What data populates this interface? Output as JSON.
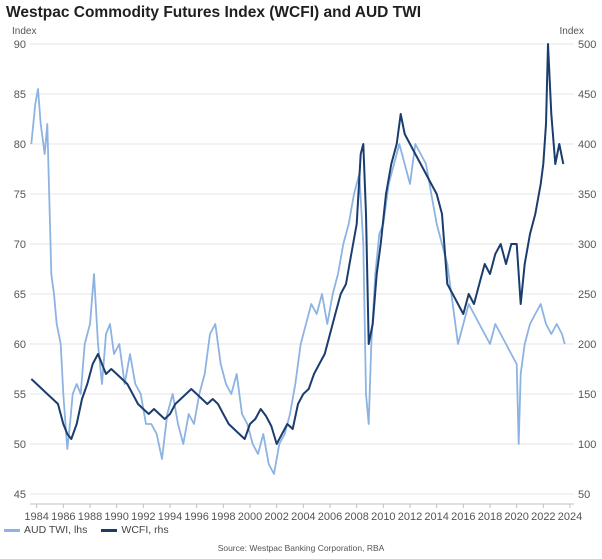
{
  "title": "Westpac Commodity Futures Index (WCFI) and AUD TWI",
  "source": "Source: Westpac Banking Corporation, RBA",
  "chart_data": {
    "type": "line",
    "title": "Westpac Commodity Futures Index (WCFI) and AUD TWI",
    "left_axis": {
      "unit": "Index",
      "ylim": [
        45,
        90
      ],
      "ticks": [
        "45",
        "50",
        "55",
        "60",
        "65",
        "70",
        "75",
        "80",
        "85",
        "90"
      ]
    },
    "right_axis": {
      "unit": "Index",
      "ylim": [
        50,
        500
      ],
      "ticks": [
        "50",
        "100",
        "150",
        "200",
        "250",
        "300",
        "350",
        "400",
        "450",
        "500"
      ]
    },
    "x_ticks": [
      "1984",
      "1986",
      "1988",
      "1990",
      "1992",
      "1994",
      "1996",
      "1998",
      "2000",
      "2002",
      "2004",
      "2006",
      "2008",
      "2010",
      "2012",
      "2014",
      "2016",
      "2018",
      "2020",
      "2022",
      "2024"
    ],
    "xlim": [
      1983.5,
      2024.3
    ],
    "grid": true,
    "legend": "bottom-left",
    "series": [
      {
        "name": "AUD TWI, lhs",
        "axis": "left",
        "color": "#8db3e2",
        "x": [
          1983.6,
          1983.9,
          1984.1,
          1984.3,
          1984.6,
          1984.8,
          1985.0,
          1985.1,
          1985.3,
          1985.5,
          1985.8,
          1986.0,
          1986.3,
          1986.5,
          1986.7,
          1987.0,
          1987.3,
          1987.6,
          1988.0,
          1988.3,
          1988.6,
          1988.9,
          1989.2,
          1989.5,
          1989.8,
          1990.2,
          1990.6,
          1991.0,
          1991.4,
          1991.8,
          1992.2,
          1992.6,
          1993.0,
          1993.4,
          1993.8,
          1994.2,
          1994.6,
          1995.0,
          1995.4,
          1995.8,
          1996.2,
          1996.6,
          1997.0,
          1997.4,
          1997.8,
          1998.2,
          1998.6,
          1999.0,
          1999.4,
          1999.8,
          2000.2,
          2000.6,
          2001.0,
          2001.4,
          2001.8,
          2002.2,
          2002.6,
          2003.0,
          2003.4,
          2003.8,
          2004.2,
          2004.6,
          2005.0,
          2005.4,
          2005.8,
          2006.2,
          2006.6,
          2007.0,
          2007.4,
          2007.8,
          2008.2,
          2008.5,
          2008.7,
          2008.9,
          2009.1,
          2009.4,
          2009.7,
          2010.0,
          2010.4,
          2010.8,
          2011.2,
          2011.6,
          2012.0,
          2012.4,
          2012.8,
          2013.2,
          2013.6,
          2014.0,
          2014.4,
          2014.8,
          2015.2,
          2015.6,
          2016.0,
          2016.4,
          2016.8,
          2017.2,
          2017.6,
          2018.0,
          2018.4,
          2018.8,
          2019.2,
          2019.6,
          2020.0,
          2020.15,
          2020.3,
          2020.6,
          2021.0,
          2021.4,
          2021.8,
          2022.2,
          2022.6,
          2023.0,
          2023.4,
          2023.6
        ],
        "y": [
          80,
          84,
          85.5,
          82,
          79,
          82,
          72,
          67,
          65,
          62,
          60,
          55,
          49.5,
          52,
          55,
          56,
          55,
          60,
          62,
          67,
          60,
          56,
          61,
          62,
          59,
          60,
          56,
          59,
          56,
          55,
          52,
          52,
          51,
          48.5,
          53,
          55,
          52,
          50,
          53,
          52,
          55,
          57,
          61,
          62,
          58,
          56,
          55,
          57,
          53,
          52,
          50,
          49,
          51,
          48,
          47,
          50,
          51,
          53,
          56,
          60,
          62,
          64,
          63,
          65,
          62,
          65,
          67,
          70,
          72,
          75,
          77,
          70,
          55,
          52,
          60,
          67,
          71,
          72,
          76,
          78,
          80,
          78,
          76,
          80,
          79,
          78,
          75,
          72,
          70,
          68,
          64,
          60,
          62,
          64,
          63,
          62,
          61,
          60,
          62,
          61,
          60,
          59,
          58,
          50,
          57,
          60,
          62,
          63,
          64,
          62,
          61,
          62,
          61,
          60
        ]
      },
      {
        "name": "WCFI, rhs",
        "axis": "right",
        "color": "#1b3d6e",
        "x": [
          1983.6,
          1984.0,
          1984.4,
          1984.8,
          1985.2,
          1985.6,
          1986.0,
          1986.3,
          1986.6,
          1987.0,
          1987.4,
          1987.8,
          1988.2,
          1988.6,
          1988.9,
          1989.2,
          1989.6,
          1990.0,
          1990.4,
          1990.8,
          1991.2,
          1991.6,
          1992.0,
          1992.4,
          1992.8,
          1993.2,
          1993.6,
          1994.0,
          1994.4,
          1994.8,
          1995.2,
          1995.6,
          1996.0,
          1996.4,
          1996.8,
          1997.2,
          1997.6,
          1998.0,
          1998.4,
          1998.8,
          1999.2,
          1999.6,
          2000.0,
          2000.4,
          2000.8,
          2001.2,
          2001.6,
          2002.0,
          2002.4,
          2002.8,
          2003.2,
          2003.6,
          2004.0,
          2004.4,
          2004.8,
          2005.2,
          2005.6,
          2006.0,
          2006.4,
          2006.8,
          2007.2,
          2007.6,
          2008.0,
          2008.3,
          2008.5,
          2008.7,
          2008.9,
          2009.2,
          2009.5,
          2009.8,
          2010.2,
          2010.6,
          2011.0,
          2011.3,
          2011.6,
          2012.0,
          2012.4,
          2012.8,
          2013.2,
          2013.6,
          2014.0,
          2014.4,
          2014.8,
          2015.2,
          2015.6,
          2016.0,
          2016.4,
          2016.8,
          2017.2,
          2017.6,
          2018.0,
          2018.4,
          2018.8,
          2019.2,
          2019.6,
          2020.0,
          2020.3,
          2020.6,
          2021.0,
          2021.4,
          2021.8,
          2022.0,
          2022.2,
          2022.35,
          2022.6,
          2022.9,
          2023.2,
          2023.5
        ],
        "y": [
          165,
          160,
          155,
          150,
          145,
          140,
          120,
          110,
          105,
          120,
          145,
          160,
          180,
          190,
          180,
          170,
          175,
          170,
          165,
          160,
          150,
          140,
          135,
          130,
          135,
          130,
          125,
          130,
          140,
          145,
          150,
          155,
          150,
          145,
          140,
          145,
          140,
          130,
          120,
          115,
          110,
          105,
          120,
          125,
          135,
          128,
          118,
          100,
          110,
          120,
          115,
          140,
          150,
          155,
          170,
          180,
          190,
          210,
          230,
          250,
          260,
          290,
          320,
          390,
          400,
          330,
          200,
          220,
          270,
          300,
          350,
          380,
          400,
          430,
          410,
          400,
          390,
          380,
          370,
          360,
          350,
          330,
          260,
          250,
          240,
          230,
          250,
          240,
          260,
          280,
          270,
          290,
          300,
          280,
          300,
          300,
          240,
          280,
          310,
          330,
          360,
          380,
          420,
          500,
          430,
          380,
          400,
          380
        ]
      }
    ]
  }
}
